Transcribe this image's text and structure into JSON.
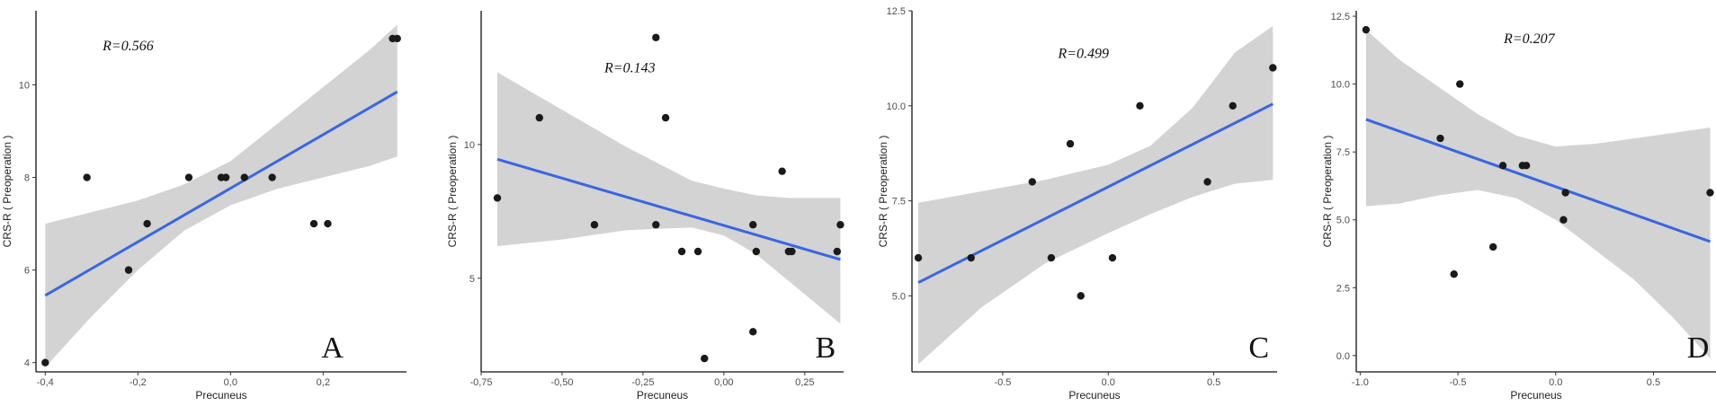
{
  "chart_data": [
    {
      "type": "scatter",
      "panel_label": "A",
      "annotation": "R=0.566",
      "xlabel": "Precuneus",
      "ylabel": "CRS-R ( Preoperation )",
      "xlim": [
        -0.42,
        0.38
      ],
      "ylim": [
        3.8,
        11.6
      ],
      "xticks": [
        -0.4,
        -0.2,
        0.0,
        0.2
      ],
      "xtick_labels": [
        "-0,4",
        "-0,2",
        "0,0",
        "0,2"
      ],
      "yticks": [
        4,
        6,
        8,
        10
      ],
      "ytick_labels": [
        "4",
        "6",
        "8",
        "10"
      ],
      "points": [
        [
          -0.4,
          4
        ],
        [
          -0.31,
          8
        ],
        [
          -0.22,
          6
        ],
        [
          -0.18,
          7
        ],
        [
          -0.09,
          8
        ],
        [
          -0.02,
          8
        ],
        [
          -0.01,
          8
        ],
        [
          0.03,
          8
        ],
        [
          0.09,
          8
        ],
        [
          0.18,
          7
        ],
        [
          0.21,
          7
        ],
        [
          0.35,
          11
        ],
        [
          0.36,
          11
        ]
      ],
      "fit_line": [
        [
          -0.4,
          5.45
        ],
        [
          0.36,
          9.85
        ]
      ],
      "confidence_band": {
        "x": [
          -0.4,
          -0.3,
          -0.2,
          -0.1,
          0.0,
          0.1,
          0.2,
          0.3,
          0.36
        ],
        "lower": [
          3.9,
          5.0,
          6.0,
          6.85,
          7.4,
          7.75,
          8.0,
          8.25,
          8.45
        ],
        "upper": [
          7.0,
          7.25,
          7.5,
          7.85,
          8.35,
          9.15,
          9.95,
          10.75,
          11.3
        ]
      }
    },
    {
      "type": "scatter",
      "panel_label": "B",
      "annotation": "R=0.143",
      "xlabel": "Precuneus",
      "ylabel": "CRS-R ( Preoperation )",
      "xlim": [
        -0.75,
        0.37
      ],
      "ylim": [
        1.5,
        15.0
      ],
      "xticks": [
        -0.75,
        -0.5,
        -0.25,
        0.0,
        0.25
      ],
      "xtick_labels": [
        "-0,75",
        "-0,50",
        "-0,25",
        "0,00",
        "0,25"
      ],
      "yticks": [
        5,
        10
      ],
      "ytick_labels": [
        "5",
        "10"
      ],
      "points": [
        [
          -0.7,
          8
        ],
        [
          -0.57,
          11
        ],
        [
          -0.4,
          7
        ],
        [
          -0.21,
          7
        ],
        [
          -0.21,
          14
        ],
        [
          -0.18,
          11
        ],
        [
          -0.13,
          6
        ],
        [
          -0.08,
          6
        ],
        [
          -0.06,
          2
        ],
        [
          0.09,
          7
        ],
        [
          0.09,
          3
        ],
        [
          0.1,
          6
        ],
        [
          0.18,
          9
        ],
        [
          0.2,
          6
        ],
        [
          0.21,
          6
        ],
        [
          0.35,
          6
        ],
        [
          0.36,
          7
        ]
      ],
      "fit_line": [
        [
          -0.7,
          9.45
        ],
        [
          0.36,
          5.7
        ]
      ],
      "confidence_band": {
        "x": [
          -0.7,
          -0.5,
          -0.3,
          -0.1,
          0.0,
          0.1,
          0.2,
          0.3,
          0.36
        ],
        "lower": [
          6.2,
          6.45,
          6.8,
          6.9,
          6.6,
          5.9,
          4.9,
          3.9,
          3.3
        ],
        "upper": [
          12.7,
          11.3,
          9.9,
          8.65,
          8.35,
          8.1,
          8.0,
          8.0,
          8.0
        ]
      }
    },
    {
      "type": "scatter",
      "panel_label": "C",
      "annotation": "R=0.499",
      "xlabel": "Precuneus",
      "ylabel": "CRS-R ( Preoperation )",
      "xlim": [
        -0.93,
        0.8
      ],
      "ylim": [
        3.0,
        12.5
      ],
      "xticks": [
        -0.5,
        0.0,
        0.5
      ],
      "xtick_labels": [
        "-0.5",
        "0.0",
        "0.5"
      ],
      "yticks": [
        5.0,
        7.5,
        10.0,
        12.5
      ],
      "ytick_labels": [
        "5.0",
        "7.5",
        "10.0",
        "12.5"
      ],
      "points": [
        [
          -0.9,
          6
        ],
        [
          -0.65,
          6
        ],
        [
          -0.36,
          8
        ],
        [
          -0.18,
          9
        ],
        [
          -0.27,
          6
        ],
        [
          -0.13,
          5
        ],
        [
          0.02,
          6
        ],
        [
          0.15,
          10
        ],
        [
          0.47,
          8
        ],
        [
          0.59,
          10
        ],
        [
          0.78,
          11
        ]
      ],
      "fit_line": [
        [
          -0.9,
          5.35
        ],
        [
          0.78,
          10.05
        ]
      ],
      "confidence_band": {
        "x": [
          -0.9,
          -0.6,
          -0.3,
          0.0,
          0.2,
          0.4,
          0.6,
          0.78
        ],
        "lower": [
          3.2,
          4.7,
          5.85,
          6.65,
          7.15,
          7.6,
          7.95,
          8.05
        ],
        "upper": [
          7.45,
          7.75,
          8.05,
          8.45,
          8.95,
          9.95,
          11.4,
          12.1
        ]
      }
    },
    {
      "type": "scatter",
      "panel_label": "D",
      "annotation": "R=0.207",
      "xlabel": "Precuneus",
      "ylabel": "CRS-R ( Preoperation )",
      "xlim": [
        -1.02,
        0.82
      ],
      "ylim": [
        -0.6,
        12.7
      ],
      "xticks": [
        -1.0,
        -0.5,
        0.0,
        0.5
      ],
      "xtick_labels": [
        "-1.0",
        "-0.5",
        "0.0",
        "0.5"
      ],
      "yticks": [
        0.0,
        2.5,
        5.0,
        7.5,
        10.0,
        12.5
      ],
      "ytick_labels": [
        "0.0",
        "2.5",
        "5.0",
        "7.5",
        "10.0",
        "12.5"
      ],
      "points": [
        [
          -0.97,
          12
        ],
        [
          -0.59,
          8
        ],
        [
          -0.49,
          10
        ],
        [
          -0.52,
          3
        ],
        [
          -0.32,
          4
        ],
        [
          -0.27,
          7
        ],
        [
          -0.17,
          7
        ],
        [
          -0.15,
          7
        ],
        [
          0.04,
          5
        ],
        [
          0.05,
          6
        ],
        [
          0.79,
          6
        ]
      ],
      "fit_line": [
        [
          -0.97,
          8.7
        ],
        [
          0.79,
          4.2
        ]
      ],
      "confidence_band": {
        "x": [
          -0.97,
          -0.8,
          -0.6,
          -0.4,
          -0.2,
          0.0,
          0.2,
          0.4,
          0.6,
          0.79
        ],
        "lower": [
          5.5,
          5.6,
          5.9,
          6.1,
          5.8,
          5.0,
          3.9,
          2.8,
          1.4,
          -0.1
        ],
        "upper": [
          12.0,
          10.9,
          9.9,
          8.9,
          8.1,
          7.7,
          7.8,
          8.0,
          8.2,
          8.4
        ]
      }
    }
  ]
}
